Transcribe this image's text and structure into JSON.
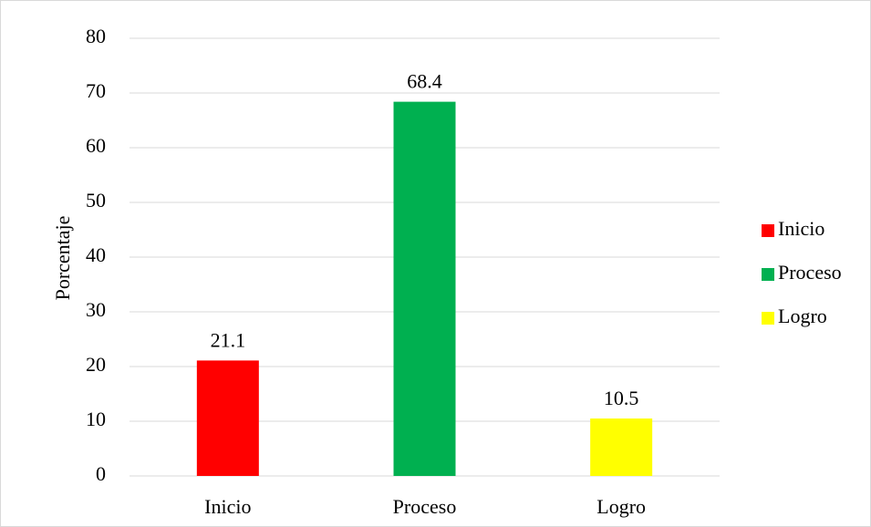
{
  "chart_data": {
    "type": "bar",
    "categories": [
      "Inicio",
      "Proceso",
      "Logro"
    ],
    "values": [
      21.1,
      68.4,
      10.5
    ],
    "data_labels": [
      "21.1",
      "68.4",
      "10.5"
    ],
    "colors": [
      "#ff0000",
      "#00b050",
      "#ffff00"
    ],
    "title": "",
    "xlabel": "",
    "ylabel": "Porcentaje",
    "ylim": [
      0,
      80
    ],
    "yticks": [
      0,
      10,
      20,
      30,
      40,
      50,
      60,
      70,
      80
    ],
    "grid": true,
    "legend": {
      "position": "right",
      "entries": [
        "Inicio",
        "Proceso",
        "Logro"
      ]
    }
  }
}
